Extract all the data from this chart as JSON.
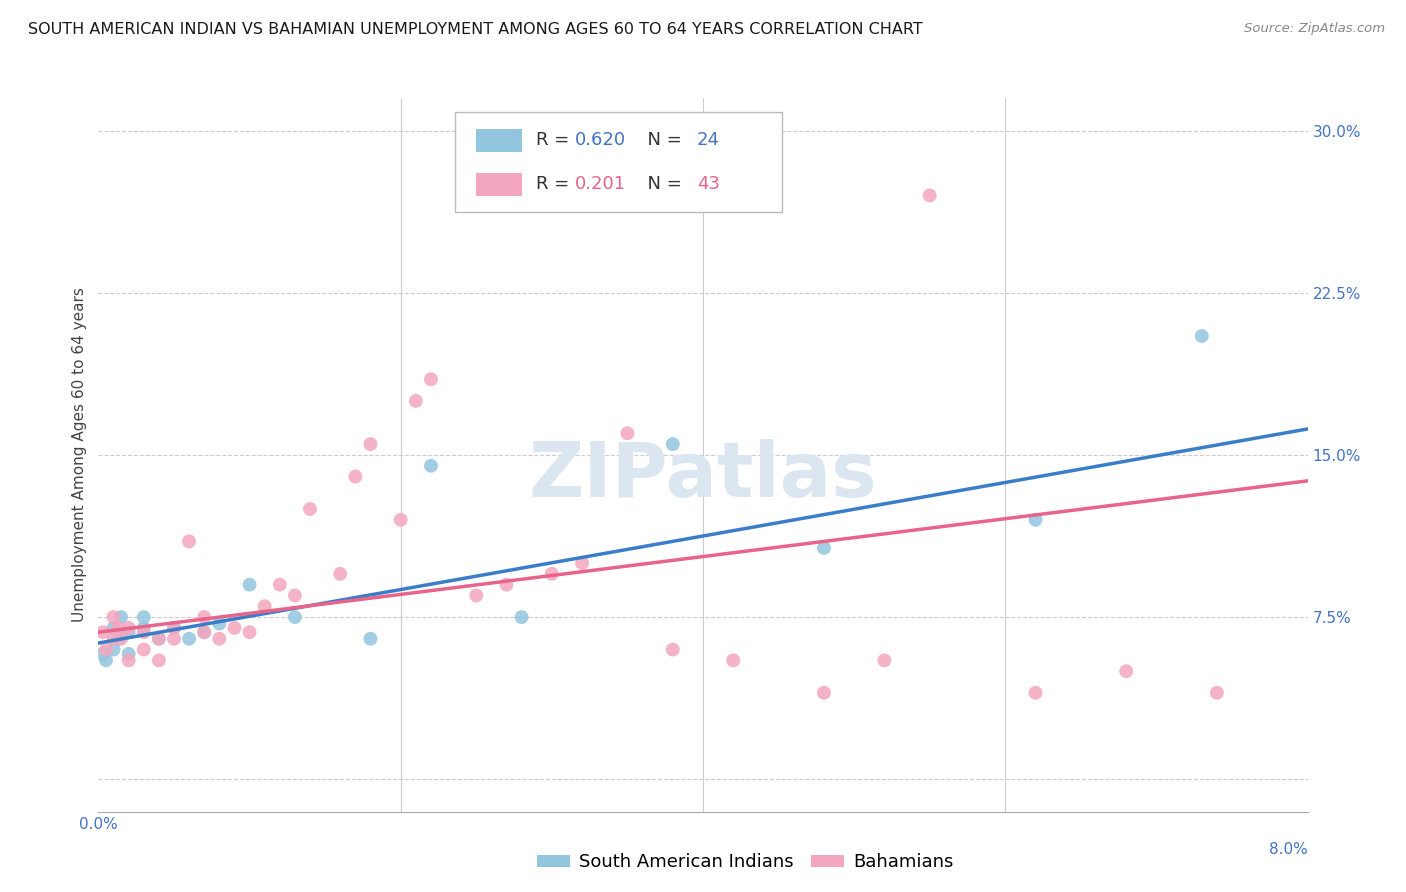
{
  "title": "SOUTH AMERICAN INDIAN VS BAHAMIAN UNEMPLOYMENT AMONG AGES 60 TO 64 YEARS CORRELATION CHART",
  "source": "Source: ZipAtlas.com",
  "ylabel": "Unemployment Among Ages 60 to 64 years",
  "ytick_labels": [
    "",
    "7.5%",
    "15.0%",
    "22.5%",
    "30.0%"
  ],
  "ytick_values": [
    0.0,
    0.075,
    0.15,
    0.225,
    0.3
  ],
  "xmin": 0.0,
  "xmax": 0.08,
  "ymin": -0.015,
  "ymax": 0.315,
  "blue_R": 0.62,
  "blue_N": 24,
  "pink_R": 0.201,
  "pink_N": 43,
  "legend_label_blue": "South American Indians",
  "legend_label_pink": "Bahamians",
  "watermark": "ZIPatlas",
  "blue_scatter_x": [
    0.0003,
    0.0005,
    0.001,
    0.001,
    0.0013,
    0.0015,
    0.002,
    0.002,
    0.003,
    0.003,
    0.004,
    0.005,
    0.006,
    0.007,
    0.008,
    0.01,
    0.013,
    0.018,
    0.022,
    0.028,
    0.038,
    0.048,
    0.062,
    0.073
  ],
  "blue_scatter_y": [
    0.058,
    0.055,
    0.06,
    0.07,
    0.065,
    0.075,
    0.058,
    0.068,
    0.07,
    0.075,
    0.065,
    0.07,
    0.065,
    0.068,
    0.072,
    0.09,
    0.075,
    0.065,
    0.145,
    0.075,
    0.155,
    0.107,
    0.12,
    0.205
  ],
  "pink_scatter_x": [
    0.0003,
    0.0005,
    0.001,
    0.001,
    0.0013,
    0.0015,
    0.002,
    0.002,
    0.003,
    0.003,
    0.004,
    0.004,
    0.005,
    0.005,
    0.006,
    0.007,
    0.007,
    0.008,
    0.009,
    0.01,
    0.011,
    0.012,
    0.013,
    0.014,
    0.016,
    0.017,
    0.018,
    0.02,
    0.021,
    0.022,
    0.025,
    0.027,
    0.03,
    0.032,
    0.035,
    0.038,
    0.042,
    0.048,
    0.052,
    0.055,
    0.062,
    0.068,
    0.074
  ],
  "pink_scatter_y": [
    0.068,
    0.06,
    0.065,
    0.075,
    0.07,
    0.065,
    0.055,
    0.07,
    0.06,
    0.068,
    0.065,
    0.055,
    0.07,
    0.065,
    0.11,
    0.068,
    0.075,
    0.065,
    0.07,
    0.068,
    0.08,
    0.09,
    0.085,
    0.125,
    0.095,
    0.14,
    0.155,
    0.12,
    0.175,
    0.185,
    0.085,
    0.09,
    0.095,
    0.1,
    0.16,
    0.06,
    0.055,
    0.04,
    0.055,
    0.27,
    0.04,
    0.05,
    0.04
  ],
  "blue_line_x": [
    0.0,
    0.08
  ],
  "blue_line_y": [
    0.063,
    0.162
  ],
  "pink_line_x": [
    0.0,
    0.08
  ],
  "pink_line_y": [
    0.068,
    0.138
  ],
  "title_fontsize": 11.5,
  "source_fontsize": 9.5,
  "tick_fontsize": 11,
  "legend_fontsize": 13,
  "ylabel_fontsize": 11,
  "scatter_size": 100,
  "blue_color": "#92c5de",
  "pink_color": "#f4a6be",
  "blue_line_color": "#3a7dc9",
  "pink_line_color": "#e8648a",
  "grid_color": "#cccccc",
  "tick_color": "#4472c4",
  "background_color": "#ffffff",
  "watermark_color": "#dce6f1",
  "watermark_fontsize": 55
}
